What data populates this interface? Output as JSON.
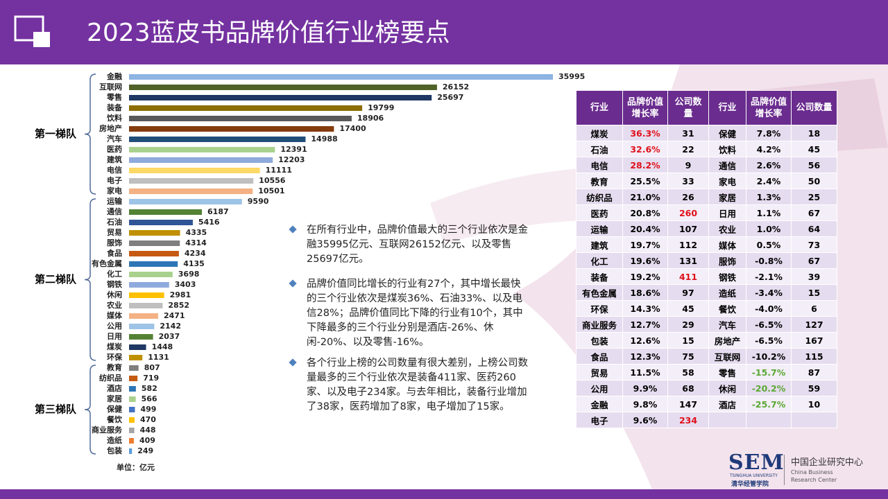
{
  "header": {
    "title": "2023蓝皮书品牌价值行业榜要点"
  },
  "chart_data": {
    "type": "bar",
    "groups": [
      {
        "name": "第一梯队",
        "categories": [
          "金融",
          "互联网",
          "零售",
          "装备",
          "饮料",
          "房地产",
          "汽车",
          "医药",
          "建筑",
          "电信",
          "电子",
          "家电"
        ],
        "values": [
          35995,
          26152,
          25697,
          19799,
          18906,
          17400,
          14988,
          12391,
          12203,
          11111,
          10556,
          10501
        ],
        "colors": [
          "#8db4e2",
          "#4f6228",
          "#1f3864",
          "#8c6d00",
          "#595959",
          "#843c0c",
          "#1f4e79",
          "#a9d18e",
          "#8ea9db",
          "#ffd966",
          "#bfbfbf",
          "#f4b183"
        ]
      },
      {
        "name": "第二梯队",
        "categories": [
          "运输",
          "通信",
          "石油",
          "贸易",
          "服饰",
          "食品",
          "有色金属",
          "化工",
          "钢铁",
          "休闲",
          "农业",
          "媒体",
          "公用",
          "日用",
          "煤炭",
          "环保"
        ],
        "values": [
          9590,
          6187,
          5416,
          4335,
          4314,
          4234,
          4135,
          3698,
          3403,
          2981,
          2852,
          2471,
          2142,
          2037,
          1448,
          1131
        ],
        "colors": [
          "#9dc3e6",
          "#548235",
          "#2f5597",
          "#bf9000",
          "#7f7f7f",
          "#c55a11",
          "#2e75b6",
          "#a9d18e",
          "#8faadc",
          "#ffc000",
          "#bfbfbf",
          "#f4b183",
          "#9dc3e6",
          "#548235",
          "#1f3864",
          "#bf9000"
        ]
      },
      {
        "name": "第三梯队",
        "categories": [
          "教育",
          "纺织品",
          "酒店",
          "家居",
          "保健",
          "餐饮",
          "商业服务",
          "造纸",
          "包装"
        ],
        "values": [
          807,
          719,
          582,
          566,
          499,
          470,
          448,
          409,
          249
        ],
        "colors": [
          "#7f7f7f",
          "#c55a11",
          "#2e75b6",
          "#a9d18e",
          "#4472c4",
          "#ffc000",
          "#a5a5a5",
          "#ed7d31",
          "#5b9bd5"
        ]
      }
    ],
    "note": "单位：亿元"
  },
  "bullets": [
    "在所有行业中，品牌价值最大的三个行业依次是金融35995亿元、互联网26152亿元、以及零售25697亿元。",
    "品牌价值同比增长的行业有27个，其中增长最快的三个行业依次是煤炭36%、石油33%、以及电信28%；品牌价值同比下降的行业有10个，其中下降最多的三个行业分别是酒店-26%、休闲-20%、以及零售-16%。",
    "各个行业上榜的公司数量有很大差别，上榜公司数量最多的三个行业依次是装备411家、医药260家、以及电子234家。与去年相比，装备行业增加了38家，医药增加了8家，电子增加了15家。"
  ],
  "table": {
    "headers": [
      "行业",
      "品牌价值增长率",
      "公司数量",
      "行业",
      "品牌价值增长率",
      "公司数量"
    ],
    "rows": [
      [
        "煤炭",
        "36.3%",
        "31",
        "保健",
        "7.8%",
        "18"
      ],
      [
        "石油",
        "32.6%",
        "22",
        "饮料",
        "4.2%",
        "45"
      ],
      [
        "电信",
        "28.2%",
        "9",
        "通信",
        "2.6%",
        "56"
      ],
      [
        "教育",
        "25.5%",
        "33",
        "家电",
        "2.4%",
        "50"
      ],
      [
        "纺织品",
        "21.0%",
        "26",
        "家居",
        "1.3%",
        "25"
      ],
      [
        "医药",
        "20.8%",
        "260",
        "日用",
        "1.1%",
        "67"
      ],
      [
        "运输",
        "20.4%",
        "107",
        "农业",
        "1.0%",
        "64"
      ],
      [
        "建筑",
        "19.7%",
        "112",
        "媒体",
        "0.5%",
        "73"
      ],
      [
        "化工",
        "19.6%",
        "131",
        "服饰",
        "-0.8%",
        "67"
      ],
      [
        "装备",
        "19.2%",
        "411",
        "钢铁",
        "-2.1%",
        "39"
      ],
      [
        "有色金属",
        "18.6%",
        "97",
        "造纸",
        "-3.4%",
        "15"
      ],
      [
        "环保",
        "14.3%",
        "45",
        "餐饮",
        "-4.0%",
        "6"
      ],
      [
        "商业服务",
        "12.7%",
        "29",
        "汽车",
        "-6.5%",
        "127"
      ],
      [
        "包装",
        "12.6%",
        "15",
        "房地产",
        "-6.5%",
        "167"
      ],
      [
        "食品",
        "12.3%",
        "75",
        "互联网",
        "-10.2%",
        "115"
      ],
      [
        "贸易",
        "11.5%",
        "58",
        "零售",
        "-15.7%",
        "87"
      ],
      [
        "公用",
        "9.9%",
        "68",
        "休闲",
        "-20.2%",
        "59"
      ],
      [
        "金融",
        "9.8%",
        "147",
        "酒店",
        "-25.7%",
        "10"
      ],
      [
        "电子",
        "9.6%",
        "234"
      ]
    ]
  },
  "logo": {
    "mark": "SEM",
    "university": "TSINGHUA UNIVERSITY",
    "school": "清华经管学院",
    "center": "中国企业研究中心",
    "center_en": "China Business Research Center"
  }
}
